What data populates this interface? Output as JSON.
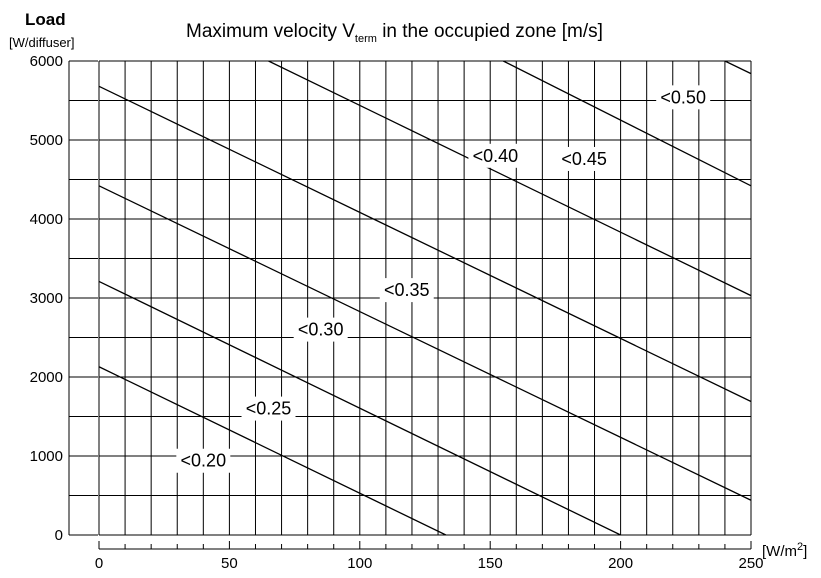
{
  "chart_data": {
    "type": "line",
    "title_main": "Maximum velocity V",
    "title_sub": "term",
    "title_rest": " in the occupied zone [m/s]",
    "ylabel": "Load",
    "ylabel_unit": "[W/diffuser]",
    "xlabel_unit": "[W/m",
    "xlabel_sup": "2",
    "xlabel_close": "]",
    "xlim": [
      0,
      250
    ],
    "ylim": [
      0,
      6000
    ],
    "x_ticks": [
      0,
      50,
      100,
      150,
      200,
      250
    ],
    "y_ticks": [
      0,
      1000,
      2000,
      3000,
      4000,
      5000,
      6000
    ],
    "grid": true,
    "series": [
      {
        "name": "<0.20",
        "points": [
          [
            0,
            2130
          ],
          [
            133,
            0
          ]
        ],
        "label_pos": [
          40,
          940
        ]
      },
      {
        "name": "<0.25",
        "points": [
          [
            0,
            3210
          ],
          [
            200,
            0
          ]
        ],
        "label_pos": [
          65,
          1600
        ]
      },
      {
        "name": "<0.30",
        "points": [
          [
            0,
            4420
          ],
          [
            250,
            440
          ]
        ],
        "label_pos": [
          85,
          2600
        ]
      },
      {
        "name": "<0.35",
        "points": [
          [
            0,
            5680
          ],
          [
            250,
            1690
          ]
        ],
        "label_pos": [
          118,
          3100
        ]
      },
      {
        "name": "<0.40",
        "points": [
          [
            65,
            6000
          ],
          [
            250,
            3030
          ]
        ],
        "label_pos": [
          152,
          4800
        ]
      },
      {
        "name": "<0.45",
        "points": [
          [
            155,
            6000
          ],
          [
            250,
            4420
          ]
        ],
        "label_pos": [
          186,
          4760
        ]
      },
      {
        "name": "<0.50",
        "points": [
          [
            240,
            6000
          ],
          [
            250,
            5840
          ]
        ],
        "label_pos": [
          224,
          5540
        ]
      }
    ],
    "label_positions_note": ""
  }
}
